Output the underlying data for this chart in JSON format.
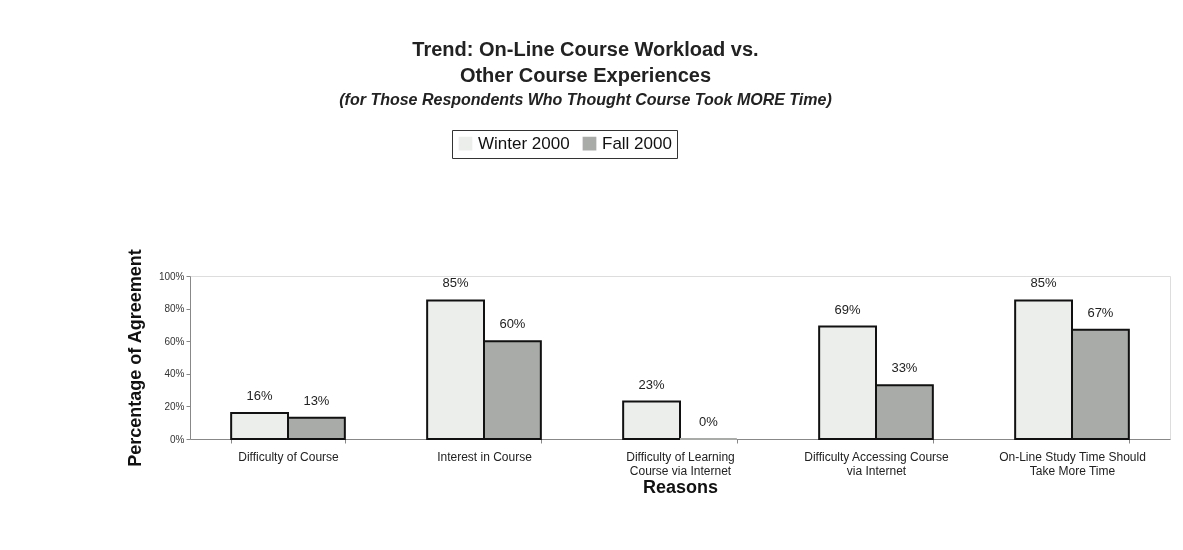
{
  "chart_data": {
    "type": "bar",
    "title": "Trend:  On-Line Course Workload vs. Other Course Experiences",
    "subtitle": "(for Those Respondents Who Thought Course Took MORE Time)",
    "xlabel": "Reasons",
    "ylabel": "Percentage of Agreement",
    "categories": [
      "Difficulty of Course",
      "Interest in Course",
      "Difficulty of Learning Course via Internet",
      "Difficulty Accessing Course via Internet",
      "On-Line Study Time Should Take More Time"
    ],
    "series": [
      {
        "name": "Winter 2000",
        "color": "#eceeec",
        "values": [
          16,
          85,
          23,
          69,
          85
        ],
        "value_labels": [
          "16%",
          "85%",
          "23%",
          "69%",
          "85%"
        ]
      },
      {
        "name": "Fall 2000",
        "color": "#a9aba9",
        "values": [
          13,
          60,
          0,
          33,
          67
        ],
        "value_labels": [
          "13%",
          "60%",
          "0%",
          "33%",
          "67%"
        ]
      }
    ],
    "ylim": [
      0,
      100
    ],
    "yticks": [
      {
        "value": 0,
        "label": "0%"
      },
      {
        "value": 20,
        "label": "20%"
      },
      {
        "value": 40,
        "label": "40%"
      },
      {
        "value": 60,
        "label": "60%"
      },
      {
        "value": 80,
        "label": "80%"
      },
      {
        "value": 100,
        "label": "100%"
      }
    ],
    "legend": "top",
    "grid": false
  }
}
